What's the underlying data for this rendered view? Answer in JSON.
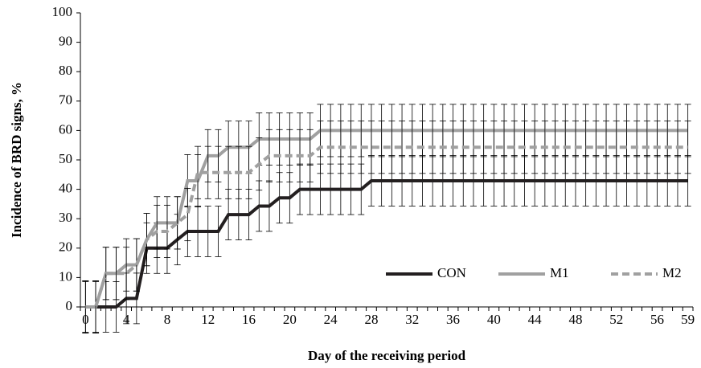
{
  "chart_data": {
    "type": "line",
    "x_label": "Day of the receiving period",
    "y_label": "Incidence of BRD signs, %",
    "categories": [
      "0",
      null,
      null,
      null,
      "4",
      null,
      null,
      null,
      "8",
      null,
      null,
      null,
      "12",
      null,
      null,
      null,
      "16",
      null,
      null,
      null,
      "20",
      null,
      null,
      null,
      "24",
      null,
      null,
      null,
      "28",
      null,
      null,
      null,
      "32",
      null,
      null,
      null,
      "36",
      null,
      null,
      null,
      "40",
      null,
      null,
      null,
      "44",
      null,
      null,
      null,
      "48",
      null,
      null,
      null,
      "52",
      null,
      null,
      null,
      "56",
      null,
      null,
      "59"
    ],
    "ylim": [
      0,
      100
    ],
    "yticks": [
      0,
      10,
      20,
      30,
      40,
      50,
      60,
      70,
      80,
      90,
      100
    ],
    "legend": "lower right",
    "series": [
      {
        "name": "CON",
        "color": "#231f20",
        "line_style": "solid",
        "values": [
          0,
          0,
          0,
          0,
          2.9,
          2.9,
          20,
          20,
          20,
          22.9,
          25.7,
          25.7,
          25.7,
          25.7,
          31.4,
          31.4,
          31.4,
          34.3,
          34.3,
          37.1,
          37.1,
          40,
          40,
          40,
          40,
          40,
          40,
          40,
          42.9,
          42.9,
          42.9,
          42.9,
          42.9,
          42.9,
          42.9,
          42.9,
          42.9,
          42.9,
          42.9,
          42.9,
          42.9,
          42.9,
          42.9,
          42.9,
          42.9,
          42.9,
          42.9,
          42.9,
          42.9,
          42.9,
          42.9,
          42.9,
          42.9,
          42.9,
          42.9,
          42.9,
          42.9,
          42.9,
          42.9,
          42.9
        ],
        "errors": [
          8.6,
          8.6,
          8.6,
          8.6,
          8.6,
          8.6,
          8.6,
          8.6,
          8.6,
          8.6,
          8.6,
          8.6,
          8.6,
          8.6,
          8.6,
          8.6,
          8.6,
          8.6,
          8.6,
          8.6,
          8.6,
          8.6,
          8.6,
          8.6,
          8.6,
          8.6,
          8.6,
          8.6,
          8.6,
          8.6,
          8.6,
          8.6,
          8.6,
          8.6,
          8.6,
          8.6,
          8.6,
          8.6,
          8.6,
          8.6,
          8.6,
          8.6,
          8.6,
          8.6,
          8.6,
          8.6,
          8.6,
          8.6,
          8.6,
          8.6,
          8.6,
          8.6,
          8.6,
          8.6,
          8.6,
          8.6,
          8.6,
          8.6,
          8.6,
          8.6
        ]
      },
      {
        "name": "M1",
        "color": "#a0a0a0",
        "line_style": "solid",
        "values": [
          0,
          0,
          11.4,
          11.4,
          14.3,
          14.3,
          22.9,
          28.6,
          28.6,
          28.6,
          42.9,
          42.9,
          51.4,
          51.4,
          54.3,
          54.3,
          54.3,
          57.1,
          57.1,
          57.1,
          57.1,
          57.1,
          57.1,
          60,
          60,
          60,
          60,
          60,
          60,
          60,
          60,
          60,
          60,
          60,
          60,
          60,
          60,
          60,
          60,
          60,
          60,
          60,
          60,
          60,
          60,
          60,
          60,
          60,
          60,
          60,
          60,
          60,
          60,
          60,
          60,
          60,
          60,
          60,
          60,
          60
        ],
        "errors": [
          8.9,
          8.9,
          8.9,
          8.9,
          8.9,
          8.9,
          8.9,
          8.9,
          8.9,
          8.9,
          8.9,
          8.9,
          8.9,
          8.9,
          8.9,
          8.9,
          8.9,
          8.9,
          8.9,
          8.9,
          8.9,
          8.9,
          8.9,
          8.9,
          8.9,
          8.9,
          8.9,
          8.9,
          8.9,
          8.9,
          8.9,
          8.9,
          8.9,
          8.9,
          8.9,
          8.9,
          8.9,
          8.9,
          8.9,
          8.9,
          8.9,
          8.9,
          8.9,
          8.9,
          8.9,
          8.9,
          8.9,
          8.9,
          8.9,
          8.9,
          8.9,
          8.9,
          8.9,
          8.9,
          8.9,
          8.9,
          8.9,
          8.9,
          8.9,
          8.9
        ]
      },
      {
        "name": "M2",
        "color": "#a0a0a0",
        "line_style": "dashed",
        "values": [
          0,
          0,
          11.4,
          11.4,
          11.4,
          14.3,
          22.9,
          25.7,
          25.7,
          28.6,
          31.4,
          45.7,
          45.7,
          45.7,
          45.7,
          45.7,
          45.7,
          48.6,
          51.4,
          51.4,
          51.4,
          51.4,
          51.4,
          54.3,
          54.3,
          54.3,
          54.3,
          54.3,
          54.3,
          54.3,
          54.3,
          54.3,
          54.3,
          54.3,
          54.3,
          54.3,
          54.3,
          54.3,
          54.3,
          54.3,
          54.3,
          54.3,
          54.3,
          54.3,
          54.3,
          54.3,
          54.3,
          54.3,
          54.3,
          54.3,
          54.3,
          54.3,
          54.3,
          54.3,
          54.3,
          54.3,
          54.3,
          54.3,
          54.3,
          54.3
        ],
        "errors": [
          8.9,
          8.9,
          8.9,
          8.9,
          8.9,
          8.9,
          8.9,
          8.9,
          8.9,
          8.9,
          8.9,
          8.9,
          8.9,
          8.9,
          8.9,
          8.9,
          8.9,
          8.9,
          8.9,
          8.9,
          8.9,
          8.9,
          8.9,
          8.9,
          8.9,
          8.9,
          8.9,
          8.9,
          8.9,
          8.9,
          8.9,
          8.9,
          8.9,
          8.9,
          8.9,
          8.9,
          8.9,
          8.9,
          8.9,
          8.9,
          8.9,
          8.9,
          8.9,
          8.9,
          8.9,
          8.9,
          8.9,
          8.9,
          8.9,
          8.9,
          8.9,
          8.9,
          8.9,
          8.9,
          8.9,
          8.9,
          8.9,
          8.9,
          8.9,
          8.9
        ]
      }
    ]
  }
}
